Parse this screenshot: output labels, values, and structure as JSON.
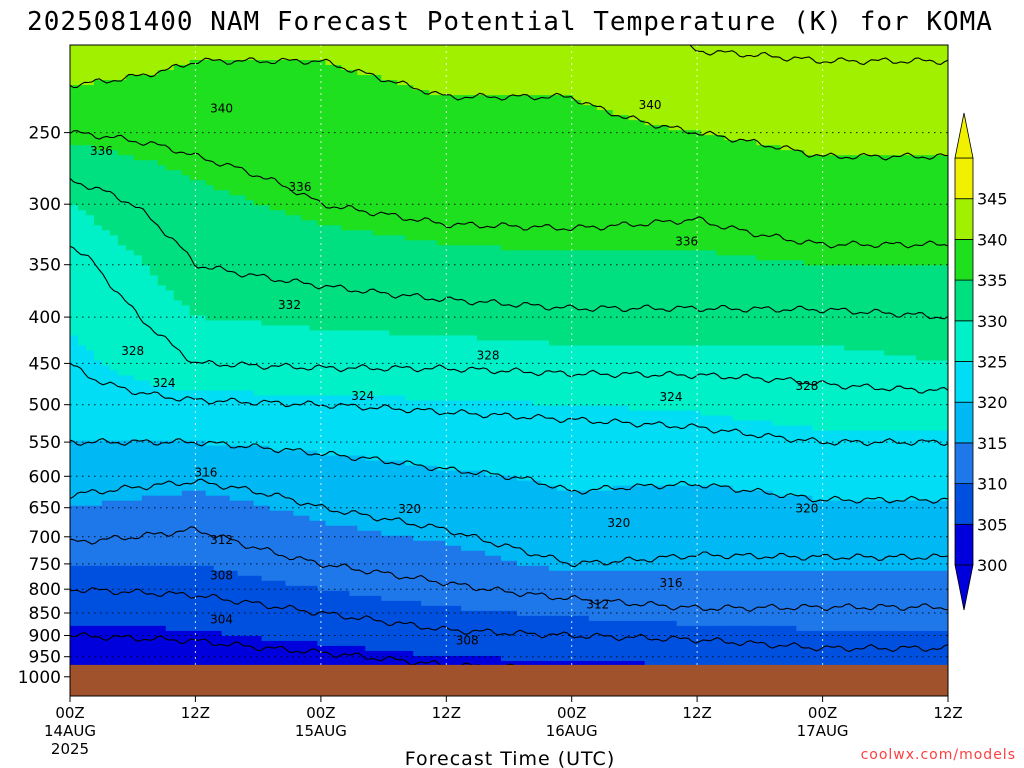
{
  "chart_data": {
    "type": "heatmap",
    "title": "2025081400 NAM Forecast Potential Temperature (K) for KOMA",
    "xlabel": "Forecast Time (UTC)",
    "ylabel": "",
    "watermark": "coolwx.com/models",
    "x_ticks": [
      {
        "hour": 0,
        "label": "00Z",
        "sub": "14AUG",
        "sub2": "2025"
      },
      {
        "hour": 12,
        "label": "12Z",
        "sub": "",
        "sub2": ""
      },
      {
        "hour": 24,
        "label": "00Z",
        "sub": "15AUG",
        "sub2": ""
      },
      {
        "hour": 36,
        "label": "12Z",
        "sub": "",
        "sub2": ""
      },
      {
        "hour": 48,
        "label": "00Z",
        "sub": "16AUG",
        "sub2": ""
      },
      {
        "hour": 60,
        "label": "12Z",
        "sub": "",
        "sub2": ""
      },
      {
        "hour": 72,
        "label": "00Z",
        "sub": "17AUG",
        "sub2": ""
      },
      {
        "hour": 84,
        "label": "12Z",
        "sub": "",
        "sub2": ""
      }
    ],
    "xlim": [
      0,
      84
    ],
    "y_ticks": [
      250,
      300,
      350,
      400,
      450,
      500,
      550,
      600,
      650,
      700,
      750,
      800,
      850,
      900,
      950,
      1000
    ],
    "y_axis": "pressure (hPa), inverted, log scale",
    "ylim": [
      1050,
      200
    ],
    "ground_below_hpa": 970,
    "colorbar": {
      "levels": [
        300,
        305,
        310,
        315,
        320,
        325,
        330,
        335,
        340,
        345
      ],
      "labels": [
        "300",
        "305",
        "310",
        "315",
        "320",
        "325",
        "330",
        "335",
        "340",
        "345"
      ],
      "colors": [
        "#0000dd",
        "#0050e0",
        "#1e78ea",
        "#00b8f4",
        "#00ddf4",
        "#00f0c8",
        "#00e080",
        "#1ee01e",
        "#a0f000",
        "#f0f000"
      ],
      "extend": "both"
    },
    "contour_interval": 4,
    "profile_pressures": [
      250,
      300,
      350,
      400,
      450,
      500,
      550,
      600,
      650,
      700,
      750,
      800,
      850,
      900,
      950
    ],
    "profiles": [
      {
        "hour": 0,
        "theta": [
          336,
          330,
          327,
          325.5,
          324,
          322.5,
          320,
          317.5,
          315,
          312.5,
          310,
          308,
          306,
          304,
          302
        ]
      },
      {
        "hour": 12,
        "theta": [
          337,
          334,
          332,
          330,
          328,
          323.5,
          320,
          316.5,
          313.5,
          311.5,
          310,
          308.5,
          306.5,
          304.5,
          302.5
        ]
      },
      {
        "hour": 24,
        "theta": [
          338,
          336,
          333,
          330.5,
          328.5,
          324,
          321,
          318,
          316,
          314,
          312,
          310,
          308,
          306,
          303.5
        ]
      },
      {
        "hour": 36,
        "theta": [
          339,
          337,
          334,
          331,
          328.5,
          324.5,
          322,
          319.5,
          317.5,
          315.5,
          313.5,
          311.5,
          309.5,
          307.5,
          305
        ]
      },
      {
        "hour": 48,
        "theta": [
          339,
          337,
          334.5,
          331.5,
          329,
          325,
          322.5,
          320.5,
          319.5,
          318,
          316,
          313,
          310.5,
          308,
          305.5
        ]
      },
      {
        "hour": 60,
        "theta": [
          340,
          336.5,
          334.5,
          331.5,
          329,
          325.5,
          323,
          320.5,
          318.5,
          317,
          315.5,
          314,
          311.5,
          308.5,
          306
        ]
      },
      {
        "hour": 72,
        "theta": [
          341,
          338,
          335,
          331.5,
          329,
          327,
          324,
          321.5,
          319.5,
          317.5,
          315.5,
          313.5,
          311.5,
          309.5,
          307
        ]
      },
      {
        "hour": 84,
        "theta": [
          341,
          338,
          335,
          332,
          330,
          327,
          324,
          321.5,
          319.5,
          317.5,
          315.5,
          313.5,
          311.5,
          309.5,
          307
        ]
      }
    ],
    "contour_labels": [
      {
        "text": "340",
        "hour": 14.5,
        "p": 235
      },
      {
        "text": "340",
        "hour": 55.5,
        "p": 233
      },
      {
        "text": "336",
        "hour": 3,
        "p": 262
      },
      {
        "text": "336",
        "hour": 22,
        "p": 287
      },
      {
        "text": "336",
        "hour": 59,
        "p": 330
      },
      {
        "text": "332",
        "hour": 21,
        "p": 388
      },
      {
        "text": "328",
        "hour": 6,
        "p": 436
      },
      {
        "text": "328",
        "hour": 40,
        "p": 441
      },
      {
        "text": "328",
        "hour": 70.5,
        "p": 477
      },
      {
        "text": "324",
        "hour": 9,
        "p": 473
      },
      {
        "text": "324",
        "hour": 28,
        "p": 489
      },
      {
        "text": "324",
        "hour": 57.5,
        "p": 490
      },
      {
        "text": "316",
        "hour": 13,
        "p": 594
      },
      {
        "text": "320",
        "hour": 32.5,
        "p": 652
      },
      {
        "text": "320",
        "hour": 52.5,
        "p": 676
      },
      {
        "text": "320",
        "hour": 70.5,
        "p": 651
      },
      {
        "text": "312",
        "hour": 14.5,
        "p": 706
      },
      {
        "text": "308",
        "hour": 14.5,
        "p": 772
      },
      {
        "text": "316",
        "hour": 57.5,
        "p": 787
      },
      {
        "text": "312",
        "hour": 50.5,
        "p": 832
      },
      {
        "text": "304",
        "hour": 14.5,
        "p": 864
      },
      {
        "text": "308",
        "hour": 38,
        "p": 912
      }
    ]
  }
}
